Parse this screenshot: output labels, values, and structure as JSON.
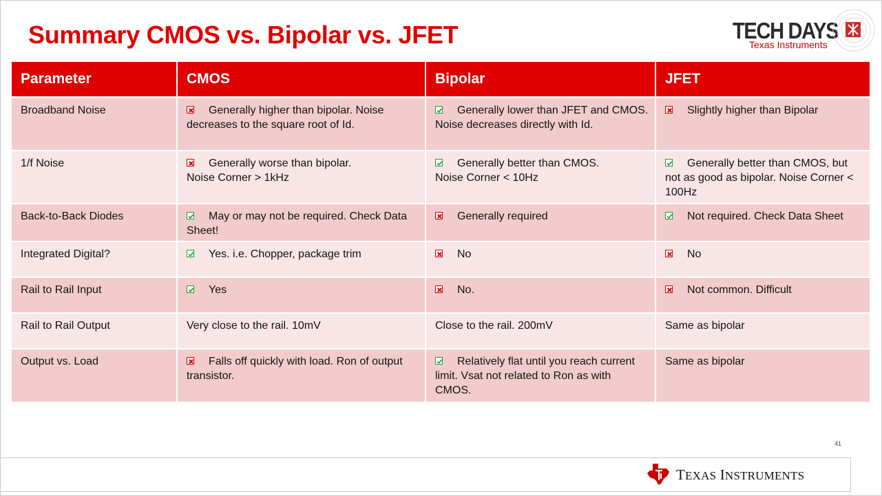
{
  "slide": {
    "title": "Summary CMOS vs. Bipolar vs. JFET",
    "page_number": "41"
  },
  "logos": {
    "tech_days": {
      "main": "TECH DAYS",
      "sub": "Texas Instruments"
    },
    "ti": {
      "first_initial": "T",
      "first_rest": "EXAS",
      "second_initial": "I",
      "second_rest": "NSTRUMENTS"
    }
  },
  "colors": {
    "accent": "#e00000",
    "row_dark": "#f2cccd",
    "row_light": "#f8e6e6",
    "check": "#1f9a2f",
    "cross": "#cc0000"
  },
  "table": {
    "headers": [
      "Parameter",
      "CMOS",
      "Bipolar",
      "JFET"
    ],
    "rows": [
      {
        "parameter": "Broadband Noise",
        "cells": [
          {
            "mark": "cross",
            "text": "Generally higher than bipolar.  Noise decreases to the square root of Id."
          },
          {
            "mark": "check",
            "text": "Generally lower than JFET and CMOS.  Noise decreases directly with Id."
          },
          {
            "mark": "cross",
            "text": "Slightly higher than Bipolar"
          }
        ]
      },
      {
        "parameter": "1/f Noise",
        "cells": [
          {
            "mark": "cross",
            "text": "Generally worse than bipolar.",
            "text2": "Noise Corner > 1kHz"
          },
          {
            "mark": "check",
            "text": "Generally better than CMOS.",
            "text2": "Noise Corner < 10Hz"
          },
          {
            "mark": "check",
            "text": "Generally better than CMOS, but not as good as bipolar. Noise Corner < 100Hz"
          }
        ]
      },
      {
        "parameter": "Back-to-Back Diodes",
        "cells": [
          {
            "mark": "check",
            "text": "May or may not be required.  Check Data Sheet!"
          },
          {
            "mark": "cross",
            "text": "Generally required"
          },
          {
            "mark": "check",
            "text": "Not required. Check Data Sheet"
          }
        ]
      },
      {
        "parameter": "Integrated Digital?",
        "cells": [
          {
            "mark": "check",
            "text": "Yes.  i.e. Chopper, package trim"
          },
          {
            "mark": "cross",
            "text": "No"
          },
          {
            "mark": "cross",
            "text": "No"
          }
        ]
      },
      {
        "parameter": "Rail to Rail Input",
        "cells": [
          {
            "mark": "check",
            "text": "Yes"
          },
          {
            "mark": "cross",
            "text": "No."
          },
          {
            "mark": "cross",
            "text": "Not common. Difficult"
          }
        ]
      },
      {
        "parameter": "Rail to Rail Output",
        "cells": [
          {
            "mark": "none",
            "text": "Very close to the rail. 10mV"
          },
          {
            "mark": "none",
            "text": "Close to the rail. 200mV"
          },
          {
            "mark": "none",
            "text": "Same as bipolar"
          }
        ]
      },
      {
        "parameter": "Output vs. Load",
        "cells": [
          {
            "mark": "cross",
            "text": "Falls off quickly with load. Ron of output transistor."
          },
          {
            "mark": "check",
            "text": "Relatively flat until you reach current limit. Vsat not related to Ron as with CMOS."
          },
          {
            "mark": "none",
            "text": "Same as bipolar"
          }
        ]
      }
    ]
  }
}
